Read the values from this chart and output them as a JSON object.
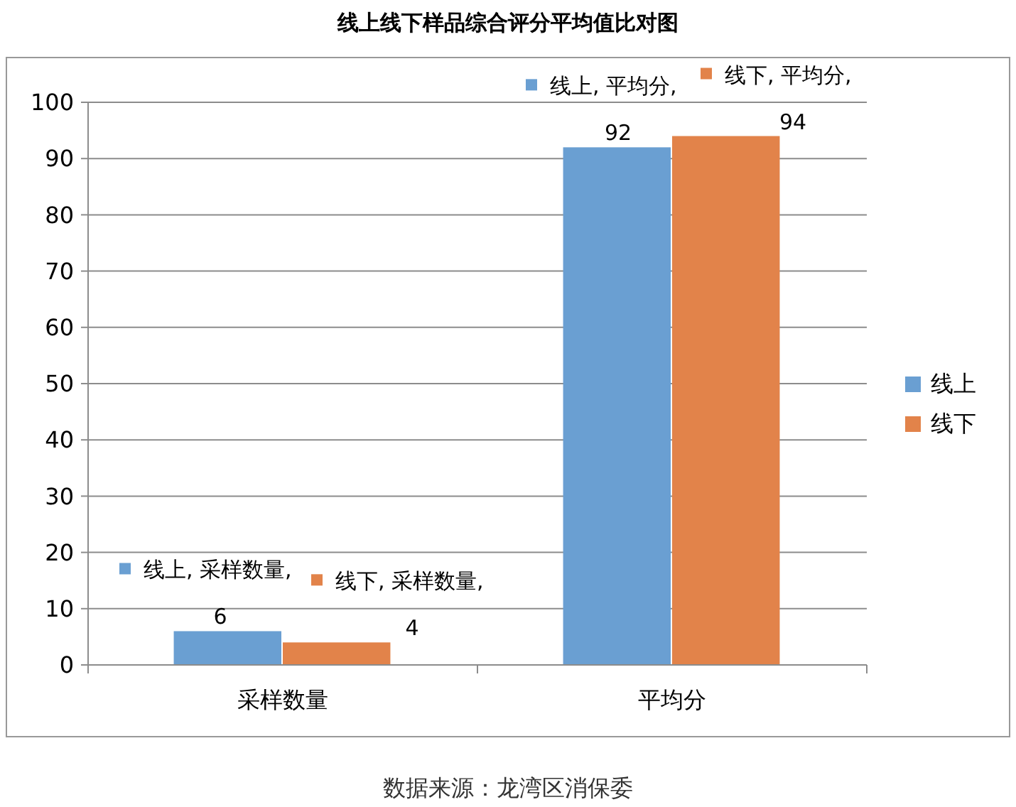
{
  "chart_data": {
    "type": "bar",
    "title": "线上线下样品综合评分平均值比对图",
    "categories": [
      "采样数量",
      "平均分"
    ],
    "series": [
      {
        "name": "线上",
        "color": "#6a9fd2",
        "values": [
          6,
          92
        ],
        "value_labels": [
          "线上, 采样数量, 6",
          "线上, 平均分, 92"
        ]
      },
      {
        "name": "线下",
        "color": "#e2834a",
        "values": [
          4,
          94
        ],
        "value_labels": [
          "线下, 采样数量, 4",
          "线下, 平均分, 94"
        ]
      }
    ],
    "ylim": [
      0,
      100
    ],
    "yticks": [
      0,
      10,
      20,
      30,
      40,
      50,
      60,
      70,
      80,
      90,
      100
    ],
    "grid": "y",
    "legend": "right",
    "annotations": [
      "数据来源：龙湾区消保委"
    ]
  }
}
